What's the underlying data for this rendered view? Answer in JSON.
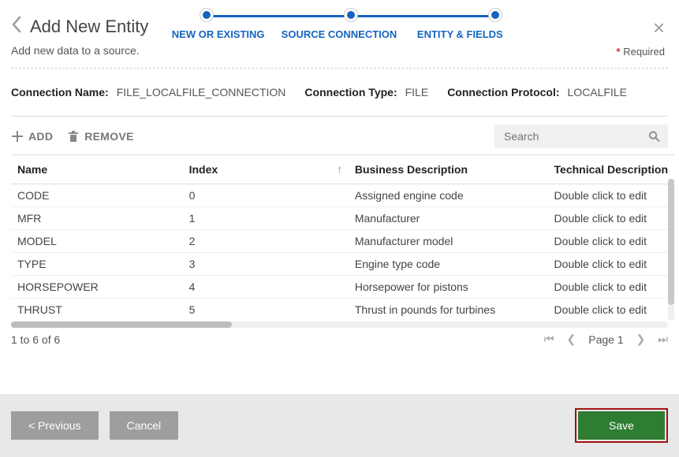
{
  "colors": {
    "accent": "#1565c0",
    "save_bg": "#2e7d32",
    "save_outline": "#a01313",
    "gray_btn": "#9e9e9e",
    "required_asterisk": "#d32f2f"
  },
  "header": {
    "title": "Add New Entity",
    "subtext": "Add new data to a source.",
    "required_label": "Required"
  },
  "stepper": {
    "steps": [
      "NEW OR EXISTING",
      "SOURCE CONNECTION",
      "ENTITY & FIELDS"
    ],
    "active_index": 2
  },
  "connection": {
    "name_label": "Connection Name:",
    "name_value": "FILE_LOCALFILE_CONNECTION",
    "type_label": "Connection Type:",
    "type_value": "FILE",
    "protocol_label": "Connection Protocol:",
    "protocol_value": "LOCALFILE"
  },
  "toolbar": {
    "add_label": "ADD",
    "remove_label": "REMOVE",
    "search_placeholder": "Search"
  },
  "table": {
    "columns": [
      "Name",
      "Index",
      "Business Description",
      "Technical Description"
    ],
    "sort_column_index": 1,
    "sort_dir": "asc",
    "rows": [
      {
        "name": "CODE",
        "index": "0",
        "bdesc": "Assigned engine code",
        "tdesc": "Double click to edit"
      },
      {
        "name": "MFR",
        "index": "1",
        "bdesc": "Manufacturer",
        "tdesc": "Double click to edit"
      },
      {
        "name": "MODEL",
        "index": "2",
        "bdesc": "Manufacturer model",
        "tdesc": "Double click to edit"
      },
      {
        "name": "TYPE",
        "index": "3",
        "bdesc": "Engine type code",
        "tdesc": "Double click to edit"
      },
      {
        "name": "HORSEPOWER",
        "index": "4",
        "bdesc": "Horsepower for pistons",
        "tdesc": "Double click to edit"
      },
      {
        "name": "THRUST",
        "index": "5",
        "bdesc": "Thrust in pounds for turbines",
        "tdesc": "Double click to edit"
      }
    ]
  },
  "pager": {
    "range_text": "1 to 6 of 6",
    "page_label": "Page",
    "page_number": "1"
  },
  "footer": {
    "previous_label": "< Previous",
    "cancel_label": "Cancel",
    "save_label": "Save"
  }
}
